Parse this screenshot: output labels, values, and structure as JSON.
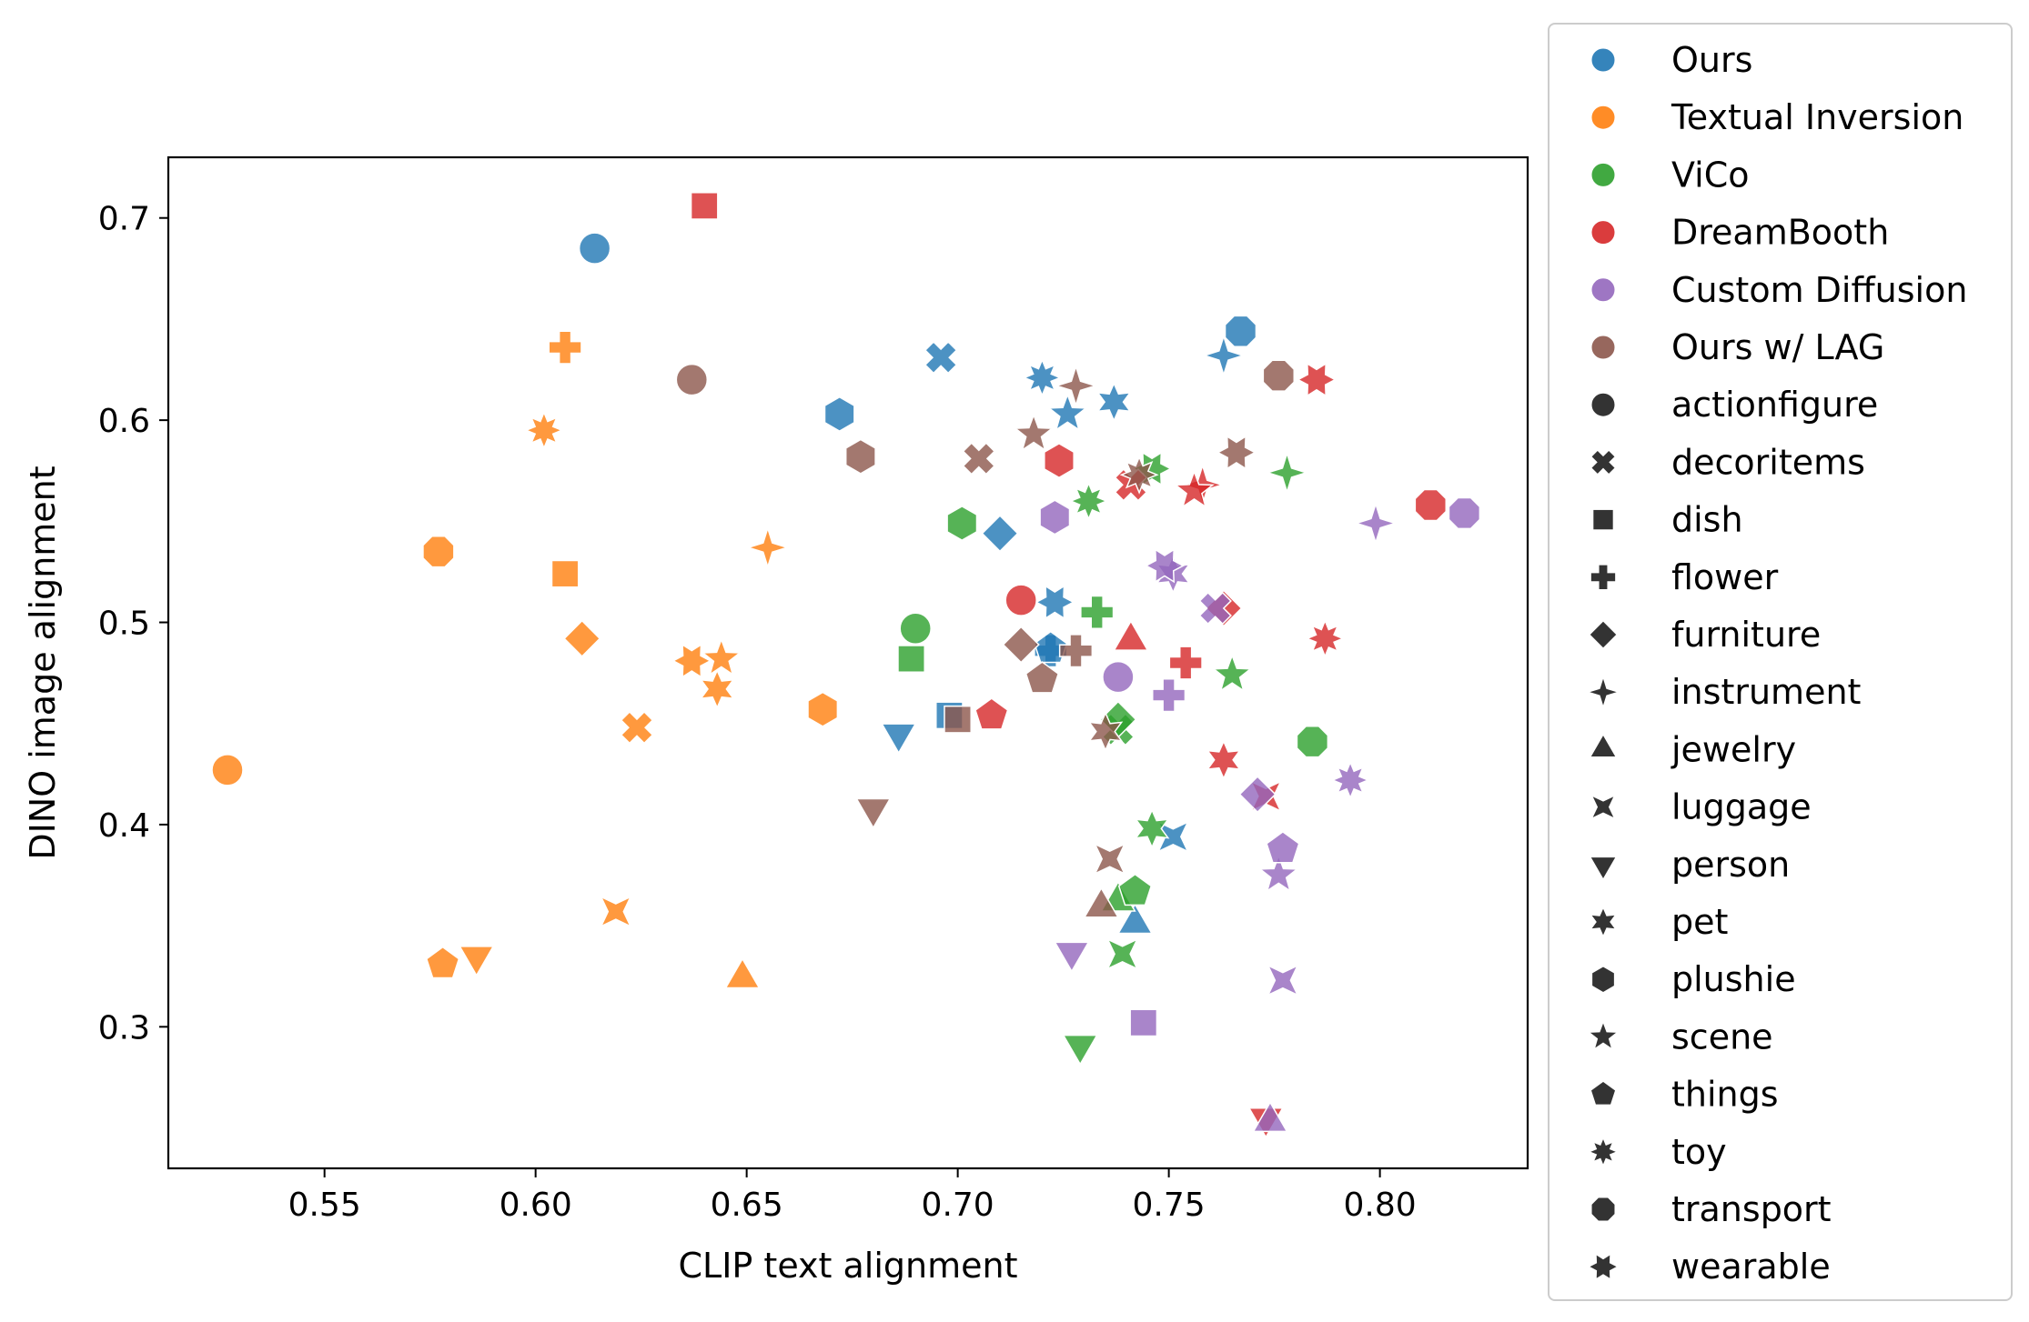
{
  "chart_data": {
    "type": "scatter",
    "xlabel": "CLIP text alignment",
    "ylabel": "DINO image alignment",
    "xlim": [
      0.513,
      0.835
    ],
    "ylim": [
      0.23,
      0.73
    ],
    "xticks": [
      "0.55",
      "0.60",
      "0.65",
      "0.70",
      "0.75",
      "0.80"
    ],
    "yticks": [
      "0.3",
      "0.4",
      "0.5",
      "0.6",
      "0.7"
    ],
    "grid": false,
    "legend_position": "outside-right",
    "methods": [
      {
        "name": "Ours",
        "color": "#1f77b4"
      },
      {
        "name": "Textual Inversion",
        "color": "#ff7f0e"
      },
      {
        "name": "ViCo",
        "color": "#2ca02c"
      },
      {
        "name": "DreamBooth",
        "color": "#d62728"
      },
      {
        "name": "Custom Diffusion",
        "color": "#9467bd"
      },
      {
        "name": "Ours w/ LAG",
        "color": "#8c564b"
      }
    ],
    "categories": [
      {
        "name": "actionfigure",
        "marker": "circle"
      },
      {
        "name": "decoritems",
        "marker": "x-cross"
      },
      {
        "name": "dish",
        "marker": "square"
      },
      {
        "name": "flower",
        "marker": "plus"
      },
      {
        "name": "furniture",
        "marker": "diamond"
      },
      {
        "name": "instrument",
        "marker": "star4"
      },
      {
        "name": "jewelry",
        "marker": "triangle-up"
      },
      {
        "name": "luggage",
        "marker": "bowtie"
      },
      {
        "name": "person",
        "marker": "triangle-down"
      },
      {
        "name": "pet",
        "marker": "star6"
      },
      {
        "name": "plushie",
        "marker": "hexagon"
      },
      {
        "name": "scene",
        "marker": "star5"
      },
      {
        "name": "things",
        "marker": "pentagon"
      },
      {
        "name": "toy",
        "marker": "star8"
      },
      {
        "name": "transport",
        "marker": "octagon"
      },
      {
        "name": "wearable",
        "marker": "star6-alt"
      }
    ],
    "points": [
      {
        "method": "Ours",
        "category": "actionfigure",
        "x": 0.614,
        "y": 0.685
      },
      {
        "method": "Ours",
        "category": "decoritems",
        "x": 0.696,
        "y": 0.631
      },
      {
        "method": "Ours",
        "category": "dish",
        "x": 0.698,
        "y": 0.454
      },
      {
        "method": "Ours",
        "category": "flower",
        "x": 0.722,
        "y": 0.486
      },
      {
        "method": "Ours",
        "category": "furniture",
        "x": 0.71,
        "y": 0.544
      },
      {
        "method": "Ours",
        "category": "instrument",
        "x": 0.763,
        "y": 0.632
      },
      {
        "method": "Ours",
        "category": "jewelry",
        "x": 0.742,
        "y": 0.351
      },
      {
        "method": "Ours",
        "category": "luggage",
        "x": 0.751,
        "y": 0.394
      },
      {
        "method": "Ours",
        "category": "person",
        "x": 0.686,
        "y": 0.445
      },
      {
        "method": "Ours",
        "category": "pet",
        "x": 0.737,
        "y": 0.609
      },
      {
        "method": "Ours",
        "category": "plushie",
        "x": 0.672,
        "y": 0.603
      },
      {
        "method": "Ours",
        "category": "scene",
        "x": 0.726,
        "y": 0.603
      },
      {
        "method": "Ours",
        "category": "things",
        "x": 0.722,
        "y": 0.487
      },
      {
        "method": "Ours",
        "category": "toy",
        "x": 0.72,
        "y": 0.621
      },
      {
        "method": "Ours",
        "category": "transport",
        "x": 0.767,
        "y": 0.644
      },
      {
        "method": "Ours",
        "category": "wearable",
        "x": 0.723,
        "y": 0.51
      },
      {
        "method": "Textual Inversion",
        "category": "actionfigure",
        "x": 0.527,
        "y": 0.427
      },
      {
        "method": "Textual Inversion",
        "category": "decoritems",
        "x": 0.624,
        "y": 0.448
      },
      {
        "method": "Textual Inversion",
        "category": "dish",
        "x": 0.607,
        "y": 0.524
      },
      {
        "method": "Textual Inversion",
        "category": "flower",
        "x": 0.607,
        "y": 0.636
      },
      {
        "method": "Textual Inversion",
        "category": "furniture",
        "x": 0.611,
        "y": 0.492
      },
      {
        "method": "Textual Inversion",
        "category": "instrument",
        "x": 0.655,
        "y": 0.537
      },
      {
        "method": "Textual Inversion",
        "category": "jewelry",
        "x": 0.649,
        "y": 0.324
      },
      {
        "method": "Textual Inversion",
        "category": "luggage",
        "x": 0.619,
        "y": 0.357
      },
      {
        "method": "Textual Inversion",
        "category": "person",
        "x": 0.586,
        "y": 0.335
      },
      {
        "method": "Textual Inversion",
        "category": "pet",
        "x": 0.643,
        "y": 0.467
      },
      {
        "method": "Textual Inversion",
        "category": "plushie",
        "x": 0.668,
        "y": 0.457
      },
      {
        "method": "Textual Inversion",
        "category": "scene",
        "x": 0.644,
        "y": 0.482
      },
      {
        "method": "Textual Inversion",
        "category": "things",
        "x": 0.578,
        "y": 0.331
      },
      {
        "method": "Textual Inversion",
        "category": "toy",
        "x": 0.602,
        "y": 0.595
      },
      {
        "method": "Textual Inversion",
        "category": "transport",
        "x": 0.577,
        "y": 0.535
      },
      {
        "method": "Textual Inversion",
        "category": "wearable",
        "x": 0.637,
        "y": 0.481
      },
      {
        "method": "ViCo",
        "category": "actionfigure",
        "x": 0.69,
        "y": 0.497
      },
      {
        "method": "ViCo",
        "category": "decoritems",
        "x": 0.738,
        "y": 0.447
      },
      {
        "method": "ViCo",
        "category": "dish",
        "x": 0.689,
        "y": 0.482
      },
      {
        "method": "ViCo",
        "category": "flower",
        "x": 0.733,
        "y": 0.505
      },
      {
        "method": "ViCo",
        "category": "furniture",
        "x": 0.738,
        "y": 0.452
      },
      {
        "method": "ViCo",
        "category": "instrument",
        "x": 0.778,
        "y": 0.574
      },
      {
        "method": "ViCo",
        "category": "jewelry",
        "x": 0.738,
        "y": 0.362
      },
      {
        "method": "ViCo",
        "category": "luggage",
        "x": 0.739,
        "y": 0.336
      },
      {
        "method": "ViCo",
        "category": "person",
        "x": 0.729,
        "y": 0.291
      },
      {
        "method": "ViCo",
        "category": "pet",
        "x": 0.746,
        "y": 0.398
      },
      {
        "method": "ViCo",
        "category": "plushie",
        "x": 0.701,
        "y": 0.549
      },
      {
        "method": "ViCo",
        "category": "scene",
        "x": 0.765,
        "y": 0.474
      },
      {
        "method": "ViCo",
        "category": "things",
        "x": 0.742,
        "y": 0.367
      },
      {
        "method": "ViCo",
        "category": "toy",
        "x": 0.731,
        "y": 0.56
      },
      {
        "method": "ViCo",
        "category": "transport",
        "x": 0.784,
        "y": 0.441
      },
      {
        "method": "ViCo",
        "category": "wearable",
        "x": 0.746,
        "y": 0.576
      },
      {
        "method": "DreamBooth",
        "category": "actionfigure",
        "x": 0.715,
        "y": 0.511
      },
      {
        "method": "DreamBooth",
        "category": "decoritems",
        "x": 0.741,
        "y": 0.568
      },
      {
        "method": "DreamBooth",
        "category": "dish",
        "x": 0.64,
        "y": 0.706
      },
      {
        "method": "DreamBooth",
        "category": "flower",
        "x": 0.754,
        "y": 0.48
      },
      {
        "method": "DreamBooth",
        "category": "furniture",
        "x": 0.763,
        "y": 0.507
      },
      {
        "method": "DreamBooth",
        "category": "instrument",
        "x": 0.758,
        "y": 0.568
      },
      {
        "method": "DreamBooth",
        "category": "jewelry",
        "x": 0.741,
        "y": 0.491
      },
      {
        "method": "DreamBooth",
        "category": "luggage",
        "x": 0.773,
        "y": 0.414
      },
      {
        "method": "DreamBooth",
        "category": "person",
        "x": 0.773,
        "y": 0.255
      },
      {
        "method": "DreamBooth",
        "category": "pet",
        "x": 0.763,
        "y": 0.432
      },
      {
        "method": "DreamBooth",
        "category": "plushie",
        "x": 0.724,
        "y": 0.58
      },
      {
        "method": "DreamBooth",
        "category": "scene",
        "x": 0.756,
        "y": 0.565
      },
      {
        "method": "DreamBooth",
        "category": "things",
        "x": 0.708,
        "y": 0.454
      },
      {
        "method": "DreamBooth",
        "category": "toy",
        "x": 0.787,
        "y": 0.492
      },
      {
        "method": "DreamBooth",
        "category": "transport",
        "x": 0.812,
        "y": 0.558
      },
      {
        "method": "DreamBooth",
        "category": "wearable",
        "x": 0.785,
        "y": 0.62
      },
      {
        "method": "Custom Diffusion",
        "category": "actionfigure",
        "x": 0.738,
        "y": 0.473
      },
      {
        "method": "Custom Diffusion",
        "category": "decoritems",
        "x": 0.761,
        "y": 0.507
      },
      {
        "method": "Custom Diffusion",
        "category": "dish",
        "x": 0.744,
        "y": 0.302
      },
      {
        "method": "Custom Diffusion",
        "category": "flower",
        "x": 0.75,
        "y": 0.464
      },
      {
        "method": "Custom Diffusion",
        "category": "furniture",
        "x": 0.771,
        "y": 0.415
      },
      {
        "method": "Custom Diffusion",
        "category": "instrument",
        "x": 0.799,
        "y": 0.549
      },
      {
        "method": "Custom Diffusion",
        "category": "jewelry",
        "x": 0.774,
        "y": 0.253
      },
      {
        "method": "Custom Diffusion",
        "category": "luggage",
        "x": 0.777,
        "y": 0.323
      },
      {
        "method": "Custom Diffusion",
        "category": "person",
        "x": 0.727,
        "y": 0.337
      },
      {
        "method": "Custom Diffusion",
        "category": "pet",
        "x": 0.751,
        "y": 0.524
      },
      {
        "method": "Custom Diffusion",
        "category": "plushie",
        "x": 0.723,
        "y": 0.552
      },
      {
        "method": "Custom Diffusion",
        "category": "scene",
        "x": 0.776,
        "y": 0.375
      },
      {
        "method": "Custom Diffusion",
        "category": "things",
        "x": 0.777,
        "y": 0.388
      },
      {
        "method": "Custom Diffusion",
        "category": "toy",
        "x": 0.793,
        "y": 0.422
      },
      {
        "method": "Custom Diffusion",
        "category": "transport",
        "x": 0.82,
        "y": 0.554
      },
      {
        "method": "Custom Diffusion",
        "category": "wearable",
        "x": 0.749,
        "y": 0.528
      },
      {
        "method": "Ours w/ LAG",
        "category": "actionfigure",
        "x": 0.637,
        "y": 0.62
      },
      {
        "method": "Ours w/ LAG",
        "category": "decoritems",
        "x": 0.705,
        "y": 0.581
      },
      {
        "method": "Ours w/ LAG",
        "category": "dish",
        "x": 0.7,
        "y": 0.452
      },
      {
        "method": "Ours w/ LAG",
        "category": "flower",
        "x": 0.728,
        "y": 0.486
      },
      {
        "method": "Ours w/ LAG",
        "category": "furniture",
        "x": 0.715,
        "y": 0.489
      },
      {
        "method": "Ours w/ LAG",
        "category": "instrument",
        "x": 0.728,
        "y": 0.617
      },
      {
        "method": "Ours w/ LAG",
        "category": "jewelry",
        "x": 0.734,
        "y": 0.359
      },
      {
        "method": "Ours w/ LAG",
        "category": "luggage",
        "x": 0.736,
        "y": 0.383
      },
      {
        "method": "Ours w/ LAG",
        "category": "person",
        "x": 0.68,
        "y": 0.408
      },
      {
        "method": "Ours w/ LAG",
        "category": "pet",
        "x": 0.735,
        "y": 0.446
      },
      {
        "method": "Ours w/ LAG",
        "category": "plushie",
        "x": 0.677,
        "y": 0.582
      },
      {
        "method": "Ours w/ LAG",
        "category": "scene",
        "x": 0.718,
        "y": 0.593
      },
      {
        "method": "Ours w/ LAG",
        "category": "things",
        "x": 0.72,
        "y": 0.472
      },
      {
        "method": "Ours w/ LAG",
        "category": "toy",
        "x": 0.743,
        "y": 0.573
      },
      {
        "method": "Ours w/ LAG",
        "category": "transport",
        "x": 0.776,
        "y": 0.622
      },
      {
        "method": "Ours w/ LAG",
        "category": "wearable",
        "x": 0.766,
        "y": 0.584
      }
    ]
  }
}
